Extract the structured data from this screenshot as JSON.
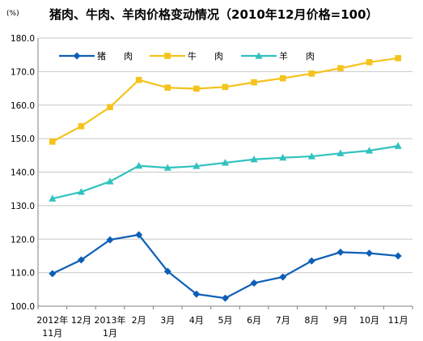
{
  "chart_data": {
    "type": "line",
    "title": "猪肉、牛肉、羊肉价格变动情况（2010年12月价格=100）",
    "unit_label": "(%)",
    "categories": [
      [
        "2012年",
        "11月"
      ],
      [
        "12月",
        ""
      ],
      [
        "2013年",
        "1月"
      ],
      [
        "2月",
        ""
      ],
      [
        "3月",
        ""
      ],
      [
        "4月",
        ""
      ],
      [
        "5月",
        ""
      ],
      [
        "6月",
        ""
      ],
      [
        "7月",
        ""
      ],
      [
        "8月",
        ""
      ],
      [
        "9月",
        ""
      ],
      [
        "10月",
        ""
      ],
      [
        "11月",
        ""
      ]
    ],
    "ylim": [
      100,
      180
    ],
    "yticks": [
      100,
      110,
      120,
      130,
      140,
      150,
      160,
      170,
      180
    ],
    "ytick_labels": [
      "100.0",
      "110.0",
      "120.0",
      "130.0",
      "140.0",
      "150.0",
      "160.0",
      "170.0",
      "180.0"
    ],
    "grid": true,
    "legend_position": "top",
    "series": [
      {
        "name": "猪　　肉",
        "color": "#0d5fb6",
        "marker": "diamond",
        "values": [
          109.7,
          113.8,
          119.8,
          121.3,
          110.4,
          103.6,
          102.4,
          106.9,
          108.7,
          113.5,
          116.1,
          115.8,
          115.0
        ]
      },
      {
        "name": "牛　　肉",
        "color": "#f5c31c",
        "marker": "square",
        "values": [
          149.1,
          153.7,
          159.4,
          167.5,
          165.2,
          164.9,
          165.4,
          166.8,
          168.0,
          169.4,
          171.0,
          172.8,
          174.0
        ]
      },
      {
        "name": "羊　　肉",
        "color": "#31c2be",
        "marker": "triangle",
        "values": [
          132.1,
          134.1,
          137.2,
          141.9,
          141.3,
          141.8,
          142.8,
          143.8,
          144.3,
          144.7,
          145.6,
          146.4,
          147.8
        ]
      }
    ]
  }
}
